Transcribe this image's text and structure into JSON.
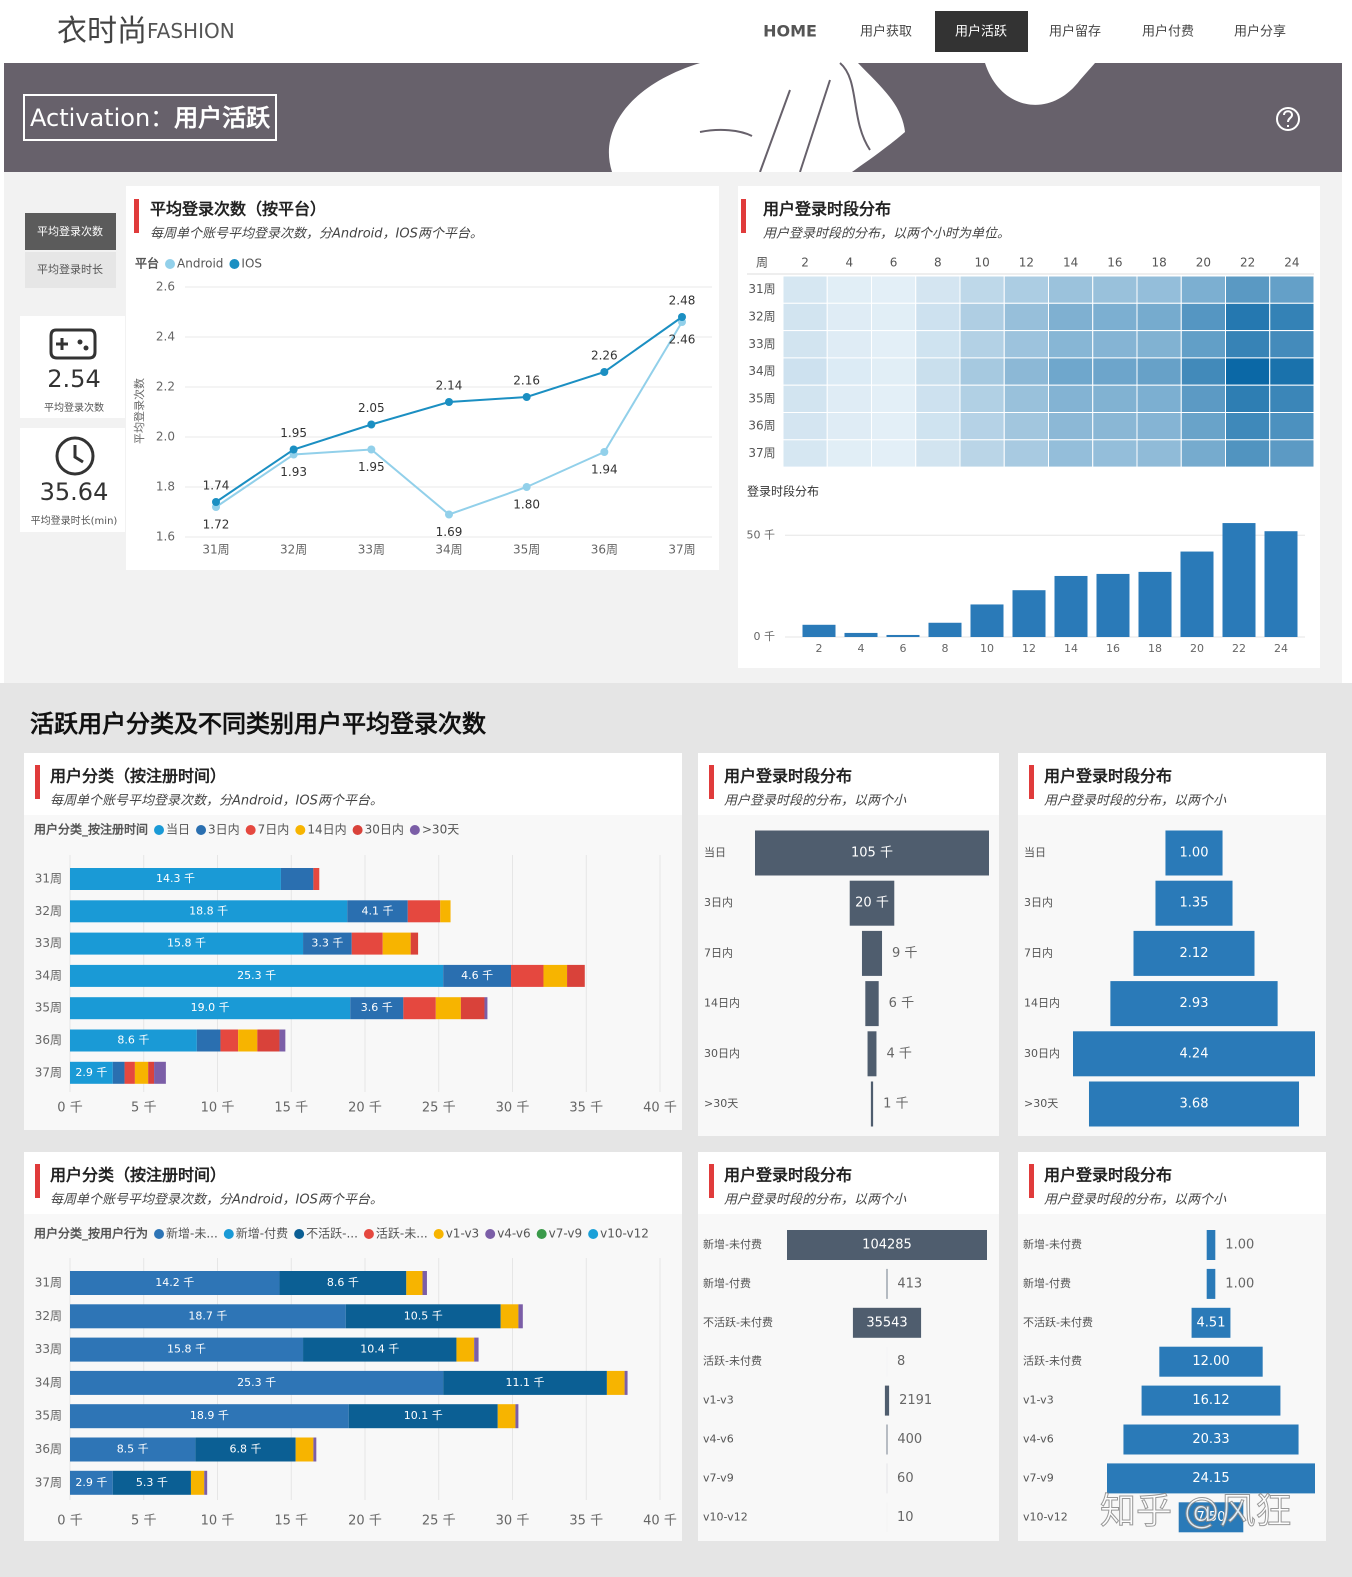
{
  "header": {
    "logo": "衣时尚",
    "logo_suffix": "FASHION",
    "nav": [
      "HOME",
      "用户获取",
      "用户活跃",
      "用户留存",
      "用户付费",
      "用户分享"
    ]
  },
  "banner": {
    "title_prefix": "Activation：",
    "title": "用户活跃"
  },
  "sidebar": {
    "buttons": [
      "平均登录次数",
      "平均登录时长"
    ]
  },
  "kpis": [
    {
      "value": 2.54,
      "label": "平均登录次数"
    },
    {
      "value": 35.64,
      "label": "平均登录时长(min)"
    }
  ],
  "section_title": "活跃用户分类及不同类别用户平均登录次数",
  "watermark": "知乎 @风狂",
  "chart_data": [
    {
      "type": "line",
      "title": "平均登录次数（按平台）",
      "subtitle": "每周单个账号平均登录次数，分Android，IOS两个平台。",
      "legend_title": "平台",
      "y_label": "平均登录次数",
      "categories": [
        "31周",
        "32周",
        "33周",
        "34周",
        "35周",
        "36周",
        "37周"
      ],
      "series": [
        {
          "name": "Android",
          "color": "#92d0ea",
          "values": [
            1.72,
            1.93,
            1.95,
            1.69,
            1.8,
            1.94,
            2.46
          ],
          "value_labels": [
            "1.72",
            "1.93",
            "1.95",
            "1.69",
            "1.80",
            "1.94",
            "2.46"
          ]
        },
        {
          "name": "IOS",
          "color": "#1b8fc2",
          "values": [
            1.74,
            1.95,
            2.05,
            2.14,
            2.16,
            2.26,
            2.48
          ],
          "value_labels": [
            "1.74",
            "1.95",
            "2.05",
            "2.14",
            "2.16",
            "2.26",
            "2.48"
          ]
        }
      ],
      "ylim": [
        1.6,
        2.6
      ],
      "yticks": [
        1.6,
        1.8,
        {
          "value": 2,
          "label": "2.0"
        },
        2.2,
        2.4,
        2.6
      ],
      "grid": true
    },
    {
      "type": "heatmap",
      "title": "用户登录时段分布",
      "subtitle": "用户登录时段的分布，以两个小时为单位。",
      "corner_label": "周",
      "categories": [
        2,
        4,
        6,
        8,
        10,
        12,
        14,
        16,
        18,
        20,
        22,
        24
      ],
      "rows": [
        "31周",
        "32周",
        "33周",
        "34周",
        "35周",
        "36周",
        "37周"
      ],
      "values": [
        [
          0.7,
          0.2,
          0.1,
          0.8,
          1.8,
          2.6,
          3.4,
          3.5,
          3.7,
          4.8,
          6.4,
          5.9
        ],
        [
          0.9,
          0.3,
          0.2,
          1.1,
          2.5,
          3.6,
          4.7,
          4.8,
          5.1,
          6.6,
          8.8,
          8.1
        ],
        [
          0.9,
          0.3,
          0.1,
          1.0,
          2.3,
          3.3,
          4.3,
          4.4,
          4.6,
          6.0,
          8.0,
          7.4
        ],
        [
          1.1,
          0.4,
          0.2,
          1.3,
          2.9,
          4.1,
          5.4,
          5.5,
          5.8,
          7.5,
          10.0,
          9.3
        ],
        [
          0.9,
          0.3,
          0.1,
          1.1,
          2.4,
          3.5,
          4.5,
          4.6,
          4.8,
          6.3,
          8.4,
          7.8
        ],
        [
          0.8,
          0.3,
          0.1,
          1.0,
          2.2,
          3.1,
          4.1,
          4.2,
          4.4,
          5.7,
          7.6,
          7.0
        ],
        [
          0.7,
          0.2,
          0.1,
          0.9,
          2.0,
          2.8,
          3.7,
          3.7,
          3.9,
          5.1,
          6.8,
          6.3
        ]
      ],
      "color_range": [
        "#e3eff7",
        "#0b68a6"
      ]
    },
    {
      "type": "bar",
      "title": "登录时段分布",
      "categories": [
        2,
        4,
        6,
        8,
        10,
        12,
        14,
        16,
        18,
        20,
        22,
        24
      ],
      "values": [
        6,
        2,
        1,
        7,
        16,
        23,
        30,
        31,
        32,
        42,
        56,
        52
      ],
      "color": "#2a7ab8",
      "ylim": [
        0,
        58
      ],
      "yticks": [
        {
          "value": 0,
          "label": "0 千"
        },
        {
          "value": 50,
          "label": "50 千"
        }
      ]
    },
    {
      "type": "stacked",
      "title": "用户分类（按注册时间）",
      "subtitle": "每周单个账号平均登录次数，分Android，IOS两个平台。",
      "legend_title": "用户分类_按注册时间",
      "categories": [
        "31周",
        "32周",
        "33周",
        "34周",
        "35周",
        "36周",
        "37周"
      ],
      "series": [
        {
          "name": "当日",
          "color": "#1a9ad6",
          "values": [
            14.3,
            18.8,
            15.8,
            25.3,
            19.0,
            8.6,
            2.9
          ],
          "value_labels": [
            "14.3 千",
            "18.8 千",
            "15.8 千",
            "25.3 千",
            "19.0 千",
            "8.6 千",
            "2.9 千"
          ]
        },
        {
          "name": "3日内",
          "color": "#2a6fb0",
          "values": [
            2.2,
            4.1,
            3.3,
            4.6,
            3.6,
            1.6,
            0.8
          ],
          "value_labels": [
            null,
            "4.1 千",
            "3.3 千",
            "4.6 千",
            "3.6 千",
            null,
            null
          ]
        },
        {
          "name": "7日内",
          "color": "#e5483f",
          "values": [
            0.4,
            2.2,
            2.1,
            2.2,
            2.2,
            1.2,
            0.7
          ]
        },
        {
          "name": "14日内",
          "color": "#f7b400",
          "values": [
            0,
            0.7,
            1.9,
            1.6,
            1.7,
            1.3,
            0.9
          ]
        },
        {
          "name": "30日内",
          "color": "#d9423a",
          "values": [
            0,
            0,
            0.5,
            1.2,
            1.6,
            1.5,
            0.4
          ]
        },
        {
          "name": ">30天",
          "color": "#7b5ea7",
          "values": [
            0,
            0,
            0,
            0,
            0.2,
            0.4,
            0.8
          ]
        }
      ],
      "xlim": [
        0,
        40
      ],
      "xticks": [
        {
          "value": 0,
          "label": "0 千"
        },
        {
          "value": 5,
          "label": "5 千"
        },
        {
          "value": 10,
          "label": "10 千"
        },
        {
          "value": 15,
          "label": "15 千"
        },
        {
          "value": 20,
          "label": "20 千"
        },
        {
          "value": 25,
          "label": "25 千"
        },
        {
          "value": 30,
          "label": "30 千"
        },
        {
          "value": 35,
          "label": "35 千"
        },
        {
          "value": 40,
          "label": "40 千"
        }
      ]
    },
    {
      "type": "funnel",
      "title": "用户登录时段分布",
      "subtitle": "用户登录时段的分布，以两个小",
      "categories": [
        "当日",
        "3日内",
        "7日内",
        "14日内",
        "30日内",
        ">30天"
      ],
      "values": [
        105,
        20,
        9,
        6,
        4,
        1
      ],
      "value_labels": [
        "105 千",
        "20 千",
        "9 千",
        "6 千",
        "4 千",
        "1 千"
      ],
      "color": "#4f5d6e"
    },
    {
      "type": "funnel",
      "title": "用户登录时段分布",
      "subtitle": "用户登录时段的分布，以两个小",
      "categories": [
        "当日",
        "3日内",
        "7日内",
        "14日内",
        "30日内",
        ">30天"
      ],
      "values": [
        1,
        1.35,
        2.12,
        2.93,
        4.24,
        3.68
      ],
      "value_labels": [
        "1.00",
        "1.35",
        "2.12",
        "2.93",
        "4.24",
        "3.68"
      ],
      "color": "#2a7ab8"
    },
    {
      "type": "stacked",
      "title": "用户分类（按注册时间）",
      "subtitle": "每周单个账号平均登录次数，分Android，IOS两个平台。",
      "legend_title": "用户分类_按用户行为",
      "categories": [
        "31周",
        "32周",
        "33周",
        "34周",
        "35周",
        "36周",
        "37周"
      ],
      "series": [
        {
          "name": "新增-未...",
          "color": "#2e75b6",
          "values": [
            14.2,
            18.7,
            15.8,
            25.3,
            18.9,
            8.5,
            2.9
          ],
          "value_labels": [
            "14.2 千",
            "18.7 千",
            "15.8 千",
            "25.3 千",
            "18.9 千",
            "8.5 千",
            "2.9 千"
          ]
        },
        {
          "name": "新增-付费",
          "color": "#1a9ad6",
          "values": [
            0,
            0,
            0,
            0,
            0,
            0,
            0
          ]
        },
        {
          "name": "不活跃-...",
          "color": "#0b5f94",
          "values": [
            8.6,
            10.5,
            10.4,
            11.1,
            10.1,
            6.8,
            5.3
          ],
          "value_labels": [
            "8.6 千",
            "10.5 千",
            "10.4 千",
            "11.1 千",
            "10.1 千",
            "6.8 千",
            "5.3 千"
          ]
        },
        {
          "name": "活跃-未...",
          "color": "#e5483f",
          "values": [
            0,
            0,
            0,
            0,
            0,
            0,
            0
          ]
        },
        {
          "name": "v1-v3",
          "color": "#f7b400",
          "values": [
            1.1,
            1.2,
            1.2,
            1.2,
            1.2,
            1.2,
            0.9
          ]
        },
        {
          "name": "v4-v6",
          "color": "#7b5ea7",
          "values": [
            0.3,
            0.3,
            0.3,
            0.2,
            0.2,
            0.2,
            0.2
          ]
        },
        {
          "name": "v7-v9",
          "color": "#3a9a4a",
          "values": [
            0,
            0,
            0,
            0,
            0,
            0,
            0
          ]
        },
        {
          "name": "v10-v12",
          "color": "#1aa0d8",
          "values": [
            0,
            0,
            0,
            0,
            0,
            0,
            0
          ]
        }
      ],
      "xlim": [
        0,
        40
      ],
      "xticks": [
        {
          "value": 0,
          "label": "0 千"
        },
        {
          "value": 5,
          "label": "5 千"
        },
        {
          "value": 10,
          "label": "10 千"
        },
        {
          "value": 15,
          "label": "15 千"
        },
        {
          "value": 20,
          "label": "20 千"
        },
        {
          "value": 25,
          "label": "25 千"
        },
        {
          "value": 30,
          "label": "30 千"
        },
        {
          "value": 35,
          "label": "35 千"
        },
        {
          "value": 40,
          "label": "40 千"
        }
      ]
    },
    {
      "type": "funnel",
      "title": "用户登录时段分布",
      "subtitle": "用户登录时段的分布，以两个小",
      "categories": [
        "新增-未付费",
        "新增-付费",
        "不活跃-未付费",
        "活跃-未付费",
        "v1-v3",
        "v4-v6",
        "v7-v9",
        "v10-v12"
      ],
      "values": [
        104285,
        413,
        35543,
        8,
        2191,
        400,
        60,
        10
      ],
      "color": "#4f5d6e"
    },
    {
      "type": "funnel",
      "title": "用户登录时段分布",
      "subtitle": "用户登录时段的分布，以两个小",
      "categories": [
        "新增-未付费",
        "新增-付费",
        "不活跃-未付费",
        "活跃-未付费",
        "v1-v3",
        "v4-v6",
        "v7-v9",
        "v10-v12"
      ],
      "values": [
        1,
        1,
        4.51,
        12,
        16.12,
        20.33,
        24.15,
        7.5
      ],
      "value_labels": [
        "1.00",
        "1.00",
        "4.51",
        "12.00",
        "16.12",
        "20.33",
        "24.15",
        "7.50"
      ],
      "color": "#2a7ab8"
    }
  ]
}
